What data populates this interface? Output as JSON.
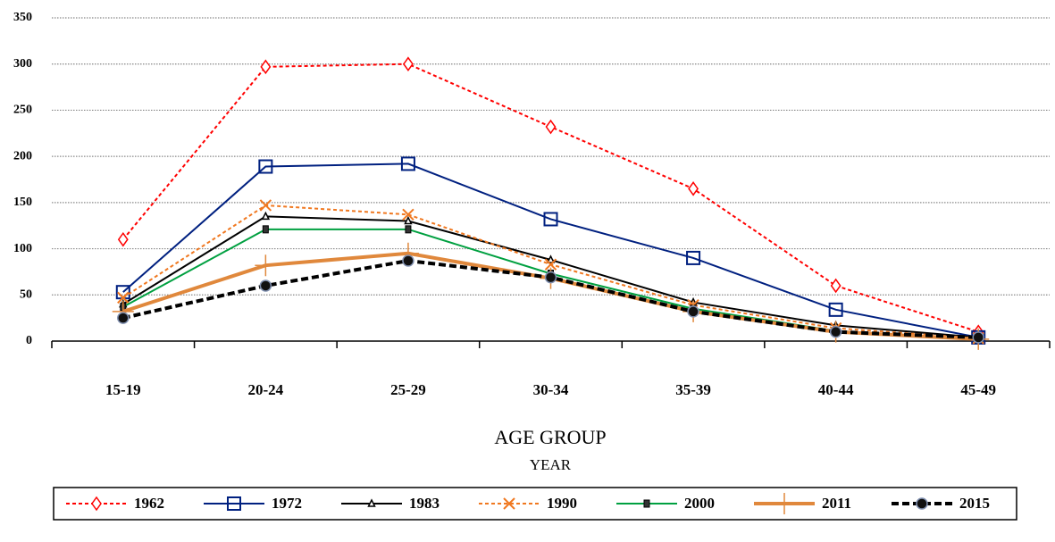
{
  "chart_data": {
    "type": "line",
    "x_label": "AGE GROUP",
    "legend_title": "YEAR",
    "categories": [
      "15-19",
      "20-24",
      "25-29",
      "30-34",
      "35-39",
      "40-44",
      "45-49"
    ],
    "series": [
      {
        "name": "1962",
        "color": "#ff0000",
        "dash": "dashed",
        "marker": "diamond",
        "values": [
          110,
          297,
          300,
          232,
          165,
          60,
          10
        ]
      },
      {
        "name": "1972",
        "color": "#002080",
        "dash": "solid",
        "marker": "square",
        "values": [
          53,
          189,
          192,
          132,
          90,
          34,
          4
        ]
      },
      {
        "name": "1983",
        "color": "#000000",
        "dash": "solid",
        "marker": "triangle",
        "values": [
          40,
          135,
          130,
          88,
          42,
          17,
          4
        ]
      },
      {
        "name": "1990",
        "color": "#f07820",
        "dash": "dashed",
        "marker": "x",
        "values": [
          47,
          147,
          137,
          83,
          39,
          14,
          3
        ]
      },
      {
        "name": "2000",
        "color": "#00a040",
        "dash": "solid",
        "marker": "filled-square",
        "values": [
          37,
          121,
          121,
          73,
          35,
          11,
          2
        ]
      },
      {
        "name": "2011",
        "color": "#e0883c",
        "dash": "solid-thick",
        "marker": "plus",
        "values": [
          32,
          82,
          95,
          68,
          32,
          10,
          2
        ]
      },
      {
        "name": "2015",
        "color": "#000000",
        "dash": "dashed-thick",
        "marker": "circle",
        "values": [
          25,
          60,
          87,
          69,
          32,
          10,
          4
        ]
      }
    ],
    "ylim": [
      0,
      350
    ],
    "yticks": [
      0,
      50,
      100,
      150,
      200,
      250,
      300,
      350
    ],
    "grid": true,
    "legend": "bottom"
  }
}
